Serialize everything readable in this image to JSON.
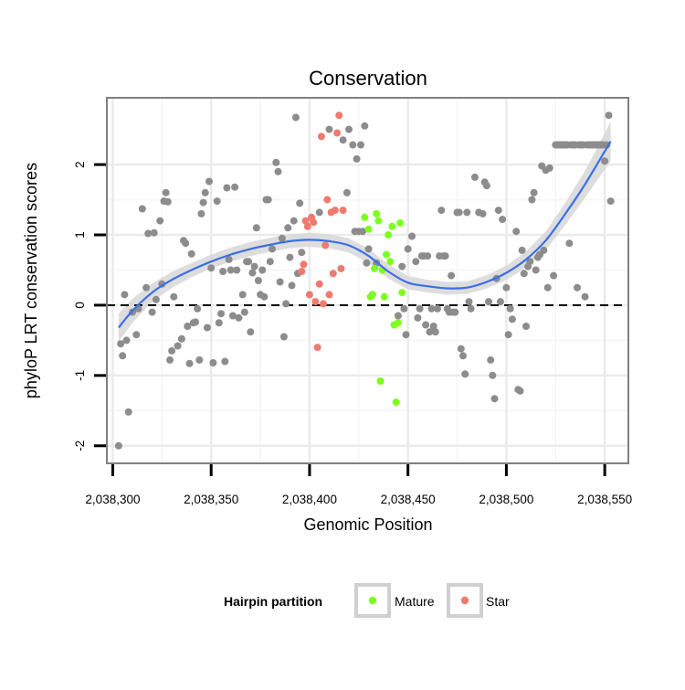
{
  "chart_data": {
    "type": "scatter",
    "title": "Conservation",
    "xlabel": "Genomic Position",
    "ylabel": "phyloP LRT conservation scores",
    "xlim": [
      2038297,
      2038562
    ],
    "ylim": [
      -2.25,
      2.95
    ],
    "x_ticks": [
      2038300,
      2038350,
      2038400,
      2038450,
      2038500,
      2038550
    ],
    "x_tick_labels": [
      "2,038,300",
      "2,038,350",
      "2,038,400",
      "2,038,450",
      "2,038,500",
      "2,038,550"
    ],
    "y_ticks": [
      -2,
      -1,
      0,
      1,
      2
    ],
    "y_tick_labels": [
      "-2",
      "-1",
      "0",
      "1",
      "2"
    ],
    "grid": true,
    "reference_line": {
      "y": 0,
      "style": "dashed"
    },
    "legend": {
      "title": "Hairpin partition",
      "position": "bottom",
      "entries": [
        {
          "label": "Mature",
          "color": "#7cff1f"
        },
        {
          "label": "Star",
          "color": "#f07a70"
        }
      ]
    },
    "colors": {
      "other": "#8c8c8c",
      "Mature": "#7cff1f",
      "Star": "#f07a70",
      "smooth_line": "#3b6fe8",
      "confidence_band": "#d9d9d9",
      "panel_border": "#808080",
      "grid_major": "#ebebeb",
      "grid_minor": "#f5f5f5"
    },
    "series": [
      {
        "group": "other",
        "points": [
          [
            2038303,
            -2.0
          ],
          [
            2038304,
            -0.55
          ],
          [
            2038305,
            -0.72
          ],
          [
            2038306,
            0.15
          ],
          [
            2038307,
            -0.5
          ],
          [
            2038308,
            -1.52
          ],
          [
            2038310,
            -0.1
          ],
          [
            2038312,
            -0.42
          ],
          [
            2038313,
            -0.05
          ],
          [
            2038315,
            1.37
          ],
          [
            2038317,
            0.25
          ],
          [
            2038318,
            1.02
          ],
          [
            2038320,
            -0.1
          ],
          [
            2038321,
            1.03
          ],
          [
            2038322,
            0.08
          ],
          [
            2038324,
            1.2
          ],
          [
            2038325,
            0.3
          ],
          [
            2038326,
            1.48
          ],
          [
            2038327,
            1.6
          ],
          [
            2038328,
            1.47
          ],
          [
            2038329,
            -0.78
          ],
          [
            2038330,
            -0.65
          ],
          [
            2038331,
            0.12
          ],
          [
            2038333,
            -0.58
          ],
          [
            2038335,
            -0.48
          ],
          [
            2038336,
            0.92
          ],
          [
            2038337,
            0.88
          ],
          [
            2038338,
            -0.3
          ],
          [
            2038339,
            -0.83
          ],
          [
            2038340,
            0.73
          ],
          [
            2038341,
            -0.25
          ],
          [
            2038342,
            -0.24
          ],
          [
            2038343,
            -0.05
          ],
          [
            2038344,
            -0.78
          ],
          [
            2038345,
            1.3
          ],
          [
            2038346,
            1.46
          ],
          [
            2038347,
            1.6
          ],
          [
            2038348,
            -0.32
          ],
          [
            2038349,
            1.76
          ],
          [
            2038350,
            0.53
          ],
          [
            2038351,
            -0.82
          ],
          [
            2038353,
            1.48
          ],
          [
            2038354,
            -0.25
          ],
          [
            2038355,
            -0.12
          ],
          [
            2038356,
            0.48
          ],
          [
            2038357,
            -0.8
          ],
          [
            2038358,
            1.67
          ],
          [
            2038359,
            0.65
          ],
          [
            2038360,
            0.5
          ],
          [
            2038361,
            -0.15
          ],
          [
            2038362,
            1.68
          ],
          [
            2038363,
            0.5
          ],
          [
            2038364,
            -0.18
          ],
          [
            2038366,
            0.15
          ],
          [
            2038367,
            -0.1
          ],
          [
            2038368,
            0.62
          ],
          [
            2038369,
            0.62
          ],
          [
            2038370,
            -0.38
          ],
          [
            2038371,
            0.46
          ],
          [
            2038372,
            0.55
          ],
          [
            2038373,
            1.1
          ],
          [
            2038374,
            0.35
          ],
          [
            2038375,
            0.15
          ],
          [
            2038376,
            0.5
          ],
          [
            2038377,
            0.12
          ],
          [
            2038378,
            1.5
          ],
          [
            2038379,
            1.5
          ],
          [
            2038380,
            0.62
          ],
          [
            2038381,
            0.8
          ],
          [
            2038383,
            2.03
          ],
          [
            2038384,
            1.9
          ],
          [
            2038385,
            0.33
          ],
          [
            2038386,
            0.95
          ],
          [
            2038387,
            -0.45
          ],
          [
            2038388,
            0.02
          ],
          [
            2038389,
            1.1
          ],
          [
            2038390,
            0.68
          ],
          [
            2038391,
            0.28
          ],
          [
            2038392,
            1.2
          ],
          [
            2038393,
            2.67
          ],
          [
            2038394,
            0.45
          ],
          [
            2038395,
            1.45
          ],
          [
            2038396,
            0.75
          ],
          [
            2038405,
            1.32
          ],
          [
            2038410,
            2.5
          ],
          [
            2038417,
            2.35
          ],
          [
            2038419,
            1.6
          ],
          [
            2038420,
            2.5
          ],
          [
            2038422,
            2.28
          ],
          [
            2038423,
            1.05
          ],
          [
            2038424,
            2.08
          ],
          [
            2038425,
            1.05
          ],
          [
            2038426,
            2.28
          ],
          [
            2038427,
            1.05
          ],
          [
            2038428,
            2.55
          ],
          [
            2038429,
            0.6
          ],
          [
            2038430,
            0.8
          ],
          [
            2038432,
            0.15
          ],
          [
            2038434,
            0.6
          ],
          [
            2038445,
            -0.15
          ],
          [
            2038447,
            0.55
          ],
          [
            2038448,
            -0.05
          ],
          [
            2038449,
            -0.42
          ],
          [
            2038450,
            0.8
          ],
          [
            2038452,
            0.98
          ],
          [
            2038454,
            0.62
          ],
          [
            2038455,
            -0.18
          ],
          [
            2038456,
            -0.05
          ],
          [
            2038457,
            0.7
          ],
          [
            2038458,
            0.7
          ],
          [
            2038459,
            -0.28
          ],
          [
            2038460,
            0.7
          ],
          [
            2038461,
            -0.38
          ],
          [
            2038462,
            -0.05
          ],
          [
            2038463,
            -0.3
          ],
          [
            2038464,
            -0.38
          ],
          [
            2038465,
            -0.05
          ],
          [
            2038466,
            0.7
          ],
          [
            2038467,
            1.35
          ],
          [
            2038468,
            0.7
          ],
          [
            2038469,
            0.7
          ],
          [
            2038470,
            -0.05
          ],
          [
            2038471,
            -0.1
          ],
          [
            2038472,
            0.42
          ],
          [
            2038473,
            -0.1
          ],
          [
            2038474,
            -0.1
          ],
          [
            2038475,
            1.32
          ],
          [
            2038476,
            1.32
          ],
          [
            2038477,
            -0.62
          ],
          [
            2038478,
            -0.72
          ],
          [
            2038479,
            -0.98
          ],
          [
            2038480,
            1.32
          ],
          [
            2038481,
            0.05
          ],
          [
            2038482,
            -0.05
          ],
          [
            2038484,
            1.82
          ],
          [
            2038486,
            1.32
          ],
          [
            2038488,
            1.3
          ],
          [
            2038489,
            1.75
          ],
          [
            2038490,
            1.7
          ],
          [
            2038491,
            0.05
          ],
          [
            2038492,
            -0.78
          ],
          [
            2038493,
            -1.0
          ],
          [
            2038494,
            -1.33
          ],
          [
            2038495,
            0.38
          ],
          [
            2038496,
            1.35
          ],
          [
            2038497,
            0.05
          ],
          [
            2038498,
            1.22
          ],
          [
            2038500,
            0.25
          ],
          [
            2038501,
            -0.42
          ],
          [
            2038502,
            -0.05
          ],
          [
            2038503,
            -0.2
          ],
          [
            2038505,
            1.05
          ],
          [
            2038506,
            -1.2
          ],
          [
            2038507,
            -1.22
          ],
          [
            2038508,
            0.78
          ],
          [
            2038509,
            0.45
          ],
          [
            2038510,
            -0.3
          ],
          [
            2038511,
            0.55
          ],
          [
            2038512,
            0.62
          ],
          [
            2038513,
            1.5
          ],
          [
            2038514,
            1.6
          ],
          [
            2038515,
            0.5
          ],
          [
            2038516,
            0.68
          ],
          [
            2038517,
            0.72
          ],
          [
            2038518,
            1.98
          ],
          [
            2038519,
            0.78
          ],
          [
            2038520,
            1.92
          ],
          [
            2038521,
            0.25
          ],
          [
            2038522,
            1.95
          ],
          [
            2038524,
            0.42
          ],
          [
            2038525,
            2.28
          ],
          [
            2038526,
            2.28
          ],
          [
            2038527,
            2.28
          ],
          [
            2038528,
            2.28
          ],
          [
            2038529,
            2.28
          ],
          [
            2038530,
            2.28
          ],
          [
            2038531,
            2.28
          ],
          [
            2038532,
            0.88
          ],
          [
            2038533,
            2.28
          ],
          [
            2038534,
            2.28
          ],
          [
            2038535,
            2.28
          ],
          [
            2038536,
            0.25
          ],
          [
            2038537,
            2.28
          ],
          [
            2038538,
            2.28
          ],
          [
            2038539,
            2.28
          ],
          [
            2038540,
            0.12
          ],
          [
            2038541,
            2.28
          ],
          [
            2038542,
            2.28
          ],
          [
            2038543,
            2.28
          ],
          [
            2038544,
            2.28
          ],
          [
            2038545,
            2.28
          ],
          [
            2038546,
            2.28
          ],
          [
            2038547,
            2.28
          ],
          [
            2038548,
            2.28
          ],
          [
            2038549,
            2.28
          ],
          [
            2038550,
            2.05
          ],
          [
            2038551,
            2.28
          ],
          [
            2038552,
            2.7
          ],
          [
            2038553,
            1.48
          ]
        ]
      },
      {
        "group": "Mature",
        "points": [
          [
            2038428,
            1.25
          ],
          [
            2038430,
            1.08
          ],
          [
            2038431,
            0.12
          ],
          [
            2038432,
            0.15
          ],
          [
            2038433,
            0.52
          ],
          [
            2038434,
            1.3
          ],
          [
            2038435,
            1.2
          ],
          [
            2038436,
            -1.08
          ],
          [
            2038437,
            0.5
          ],
          [
            2038438,
            0.12
          ],
          [
            2038439,
            0.72
          ],
          [
            2038440,
            1.0
          ],
          [
            2038441,
            0.62
          ],
          [
            2038442,
            1.12
          ],
          [
            2038443,
            -0.28
          ],
          [
            2038444,
            -1.38
          ],
          [
            2038445,
            -0.25
          ],
          [
            2038446,
            1.17
          ],
          [
            2038447,
            0.18
          ]
        ]
      },
      {
        "group": "Star",
        "points": [
          [
            2038396,
            0.48
          ],
          [
            2038397,
            0.58
          ],
          [
            2038398,
            1.2
          ],
          [
            2038399,
            1.12
          ],
          [
            2038400,
            0.15
          ],
          [
            2038401,
            1.25
          ],
          [
            2038402,
            1.18
          ],
          [
            2038403,
            0.05
          ],
          [
            2038404,
            -0.6
          ],
          [
            2038405,
            0.3
          ],
          [
            2038406,
            2.4
          ],
          [
            2038407,
            0.02
          ],
          [
            2038408,
            0.85
          ],
          [
            2038409,
            1.5
          ],
          [
            2038410,
            0.15
          ],
          [
            2038411,
            1.32
          ],
          [
            2038412,
            0.45
          ],
          [
            2038413,
            1.35
          ],
          [
            2038414,
            2.45
          ],
          [
            2038415,
            2.7
          ],
          [
            2038416,
            0.52
          ],
          [
            2038417,
            1.35
          ]
        ]
      }
    ],
    "smooth_fit": {
      "method": "loess",
      "points": [
        [
          2038303,
          -0.32
        ],
        [
          2038310,
          -0.08
        ],
        [
          2038320,
          0.18
        ],
        [
          2038330,
          0.36
        ],
        [
          2038340,
          0.5
        ],
        [
          2038350,
          0.62
        ],
        [
          2038360,
          0.72
        ],
        [
          2038370,
          0.8
        ],
        [
          2038380,
          0.86
        ],
        [
          2038390,
          0.91
        ],
        [
          2038400,
          0.93
        ],
        [
          2038410,
          0.91
        ],
        [
          2038420,
          0.85
        ],
        [
          2038430,
          0.7
        ],
        [
          2038440,
          0.48
        ],
        [
          2038450,
          0.32
        ],
        [
          2038460,
          0.27
        ],
        [
          2038470,
          0.24
        ],
        [
          2038480,
          0.25
        ],
        [
          2038490,
          0.33
        ],
        [
          2038500,
          0.46
        ],
        [
          2038510,
          0.65
        ],
        [
          2038520,
          0.92
        ],
        [
          2038530,
          1.3
        ],
        [
          2038540,
          1.72
        ],
        [
          2038553,
          2.33
        ]
      ],
      "band_halfwidth": [
        [
          2038303,
          0.2
        ],
        [
          2038320,
          0.13
        ],
        [
          2038340,
          0.1
        ],
        [
          2038360,
          0.1
        ],
        [
          2038380,
          0.1
        ],
        [
          2038400,
          0.1
        ],
        [
          2038420,
          0.1
        ],
        [
          2038440,
          0.1
        ],
        [
          2038460,
          0.09
        ],
        [
          2038480,
          0.09
        ],
        [
          2038500,
          0.1
        ],
        [
          2038520,
          0.13
        ],
        [
          2038540,
          0.19
        ],
        [
          2038553,
          0.28
        ]
      ]
    }
  }
}
